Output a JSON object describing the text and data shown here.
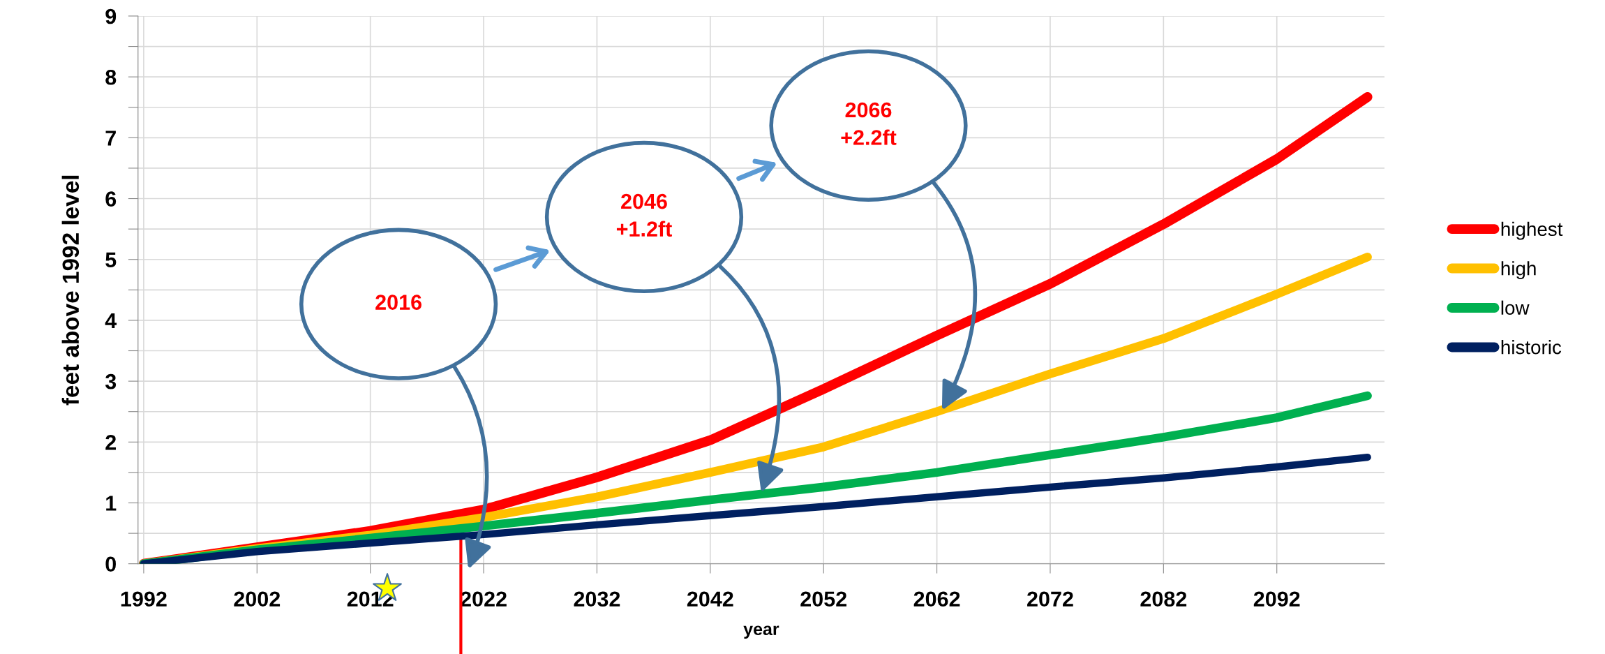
{
  "chart_data": {
    "type": "line",
    "xlabel": "year",
    "ylabel": "feet above 1992 level",
    "x": [
      1992,
      2002,
      2012,
      2022,
      2032,
      2042,
      2052,
      2062,
      2072,
      2082,
      2092,
      2100
    ],
    "series": [
      {
        "name": "highest",
        "color": "#ff0000",
        "values": [
          0,
          0.27,
          0.54,
          0.89,
          1.42,
          2.03,
          2.87,
          3.75,
          4.6,
          5.58,
          6.65,
          7.67
        ]
      },
      {
        "name": "high",
        "color": "#ffc000",
        "values": [
          0,
          0.25,
          0.47,
          0.76,
          1.1,
          1.5,
          1.92,
          2.5,
          3.12,
          3.7,
          4.43,
          5.04
        ]
      },
      {
        "name": "low",
        "color": "#00b050",
        "values": [
          0,
          0.23,
          0.42,
          0.62,
          0.83,
          1.05,
          1.26,
          1.5,
          1.79,
          2.08,
          2.4,
          2.76
        ]
      },
      {
        "name": "historic",
        "color": "#002060",
        "values": [
          0,
          0.2,
          0.34,
          0.48,
          0.64,
          0.79,
          0.94,
          1.1,
          1.26,
          1.41,
          1.59,
          1.75
        ]
      }
    ],
    "xlim": [
      1991.5,
      2101.5
    ],
    "xticks": [
      1992,
      2002,
      2012,
      2022,
      2032,
      2042,
      2052,
      2062,
      2072,
      2082,
      2092
    ],
    "ylim": [
      0,
      9
    ],
    "yticks": [
      0,
      {
        "value": 0.5,
        "label": null
      },
      1,
      {
        "value": 1.5,
        "label": null
      },
      2,
      {
        "value": 2.5,
        "label": null
      },
      3,
      {
        "value": 3.5,
        "label": null
      },
      4,
      {
        "value": 4.5,
        "label": null
      },
      5,
      {
        "value": 5.5,
        "label": null
      },
      6,
      {
        "value": 6.5,
        "label": null
      },
      7,
      {
        "value": 7.5,
        "label": null
      },
      8,
      {
        "value": 8.5,
        "label": null
      },
      9
    ],
    "annotations": [
      "2016",
      "2046\n+1.2ft",
      "2066\n+2.2ft"
    ],
    "grid": true,
    "legend": "right",
    "marker": "none",
    "line_style": "solid"
  }
}
